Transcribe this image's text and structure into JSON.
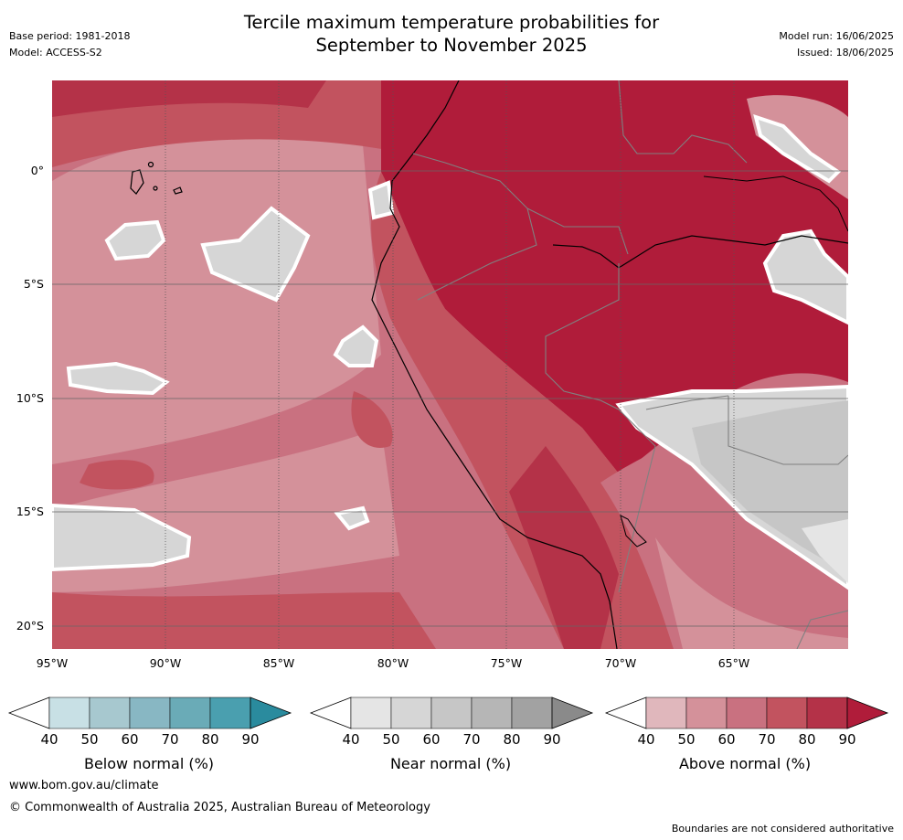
{
  "title_line1": "Tercile maximum temperature probabilities for",
  "title_line2": "September to November 2025",
  "base_period": "Base period: 1981-2018",
  "model": "Model: ACCESS-S2",
  "model_run": "Model run: 16/06/2025",
  "issued": "Issued: 18/06/2025",
  "lat_labels": [
    "0°",
    "5°S",
    "10°S",
    "15°S",
    "20°S"
  ],
  "lon_labels": [
    "95°W",
    "90°W",
    "85°W",
    "80°W",
    "75°W",
    "70°W",
    "65°W"
  ],
  "colorbars": [
    {
      "title": "Below normal (%)",
      "ticks": [
        "40",
        "50",
        "60",
        "70",
        "80",
        "90"
      ],
      "colors": [
        "#ffffff",
        "#c8e0e5",
        "#a7c8cf",
        "#88b7c3",
        "#6aabb7",
        "#4a9faf",
        "#2a8b9e"
      ]
    },
    {
      "title": "Near normal (%)",
      "ticks": [
        "40",
        "50",
        "60",
        "70",
        "80",
        "90"
      ],
      "colors": [
        "#ffffff",
        "#e5e5e5",
        "#d6d6d6",
        "#c6c6c6",
        "#b6b6b6",
        "#a2a2a2",
        "#8a8a8a"
      ]
    },
    {
      "title": "Above normal (%)",
      "ticks": [
        "40",
        "50",
        "60",
        "70",
        "80",
        "90"
      ],
      "colors": [
        "#ffffff",
        "#e0b7bc",
        "#d4919a",
        "#c97180",
        "#c2535f",
        "#b43248",
        "#b01c3a"
      ]
    }
  ],
  "website": "www.bom.gov.au/climate",
  "copyright": "© Commonwealth of Australia 2025, Australian Bureau of Meteorology",
  "disclaimer": "Boundaries are not considered authoritative"
}
